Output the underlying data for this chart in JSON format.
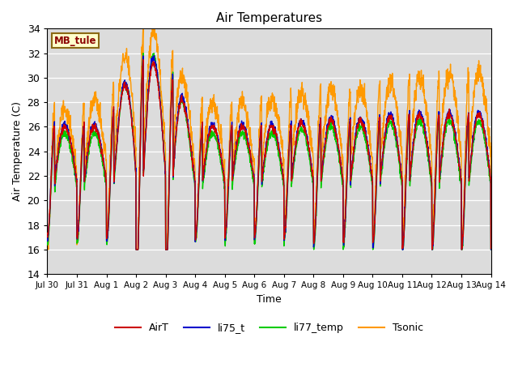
{
  "title": "Air Temperatures",
  "ylabel": "Air Temperature (C)",
  "xlabel": "Time",
  "ylim": [
    14,
    34
  ],
  "yticks": [
    14,
    16,
    18,
    20,
    22,
    24,
    26,
    28,
    30,
    32,
    34
  ],
  "bg_color": "#dcdcdc",
  "annotation_text": "MB_tule",
  "annotation_bg": "#ffffcc",
  "annotation_border": "#8b6914",
  "annotation_text_color": "#8b0000",
  "series_colors": {
    "AirT": "#cc0000",
    "li75_t": "#0000cc",
    "li77_temp": "#00cc00",
    "Tsonic": "#ff9900"
  },
  "xtick_labels": [
    "Jul 30",
    "Jul 31",
    "Aug 1",
    "Aug 2",
    "Aug 3",
    "Aug 4",
    "Aug 5",
    "Aug 6",
    "Aug 7",
    "Aug 8",
    "Aug 9",
    "Aug 10",
    "Aug 11",
    "Aug 12",
    "Aug 13",
    "Aug 14"
  ],
  "n_days": 15,
  "points_per_day": 144,
  "grid_color": "#c8c8c8",
  "figsize": [
    6.4,
    4.8
  ],
  "dpi": 100
}
